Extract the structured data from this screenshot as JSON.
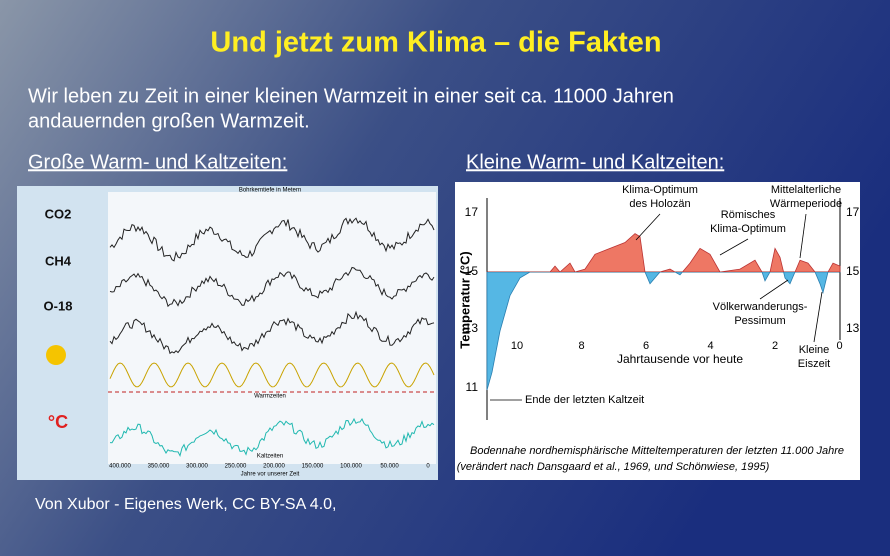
{
  "title": "Und jetzt zum Klima – die Fakten",
  "intro": [
    "Wir leben zu Zeit in einer kleinen Warmzeit in einer seit ca. 11000 Jahren",
    "andauernden großen Warmzeit."
  ],
  "left": {
    "heading": "Große Warm- und Kaltzeiten:",
    "labels": [
      "CO2",
      "CH4",
      "O-18",
      "°C"
    ],
    "top_axis_label": "Bohrkerntiefe in Metern",
    "bands": [
      "Warmzeiten",
      "Kaltzeiten"
    ],
    "bottom_axis_label": "Jahre vor unserer Zeit",
    "x_ticks": [
      "400.000",
      "350.000",
      "300.000",
      "250.000",
      "200.000",
      "150.000",
      "100.000",
      "50.000",
      "0"
    ]
  },
  "right": {
    "heading": "Kleine Warm- und Kaltzeiten:",
    "y_label": "Temperatur (°C)",
    "x_label": "Jahrtausende vor heute",
    "y_ticks": [
      "17",
      "15",
      "13",
      "11"
    ],
    "x_ticks": [
      "10",
      "8",
      "6",
      "4",
      "2",
      "0"
    ],
    "annotations": [
      [
        "Klima-Optimum",
        "des Holozän"
      ],
      [
        "Römisches",
        "Klima-Optimum"
      ],
      [
        "Mittelalterliche",
        "Wärmeperiode"
      ],
      [
        "Völkerwanderungs-",
        "Pessimum"
      ],
      [
        "Kleine",
        "Eiszeit"
      ],
      [
        "Ende der letzten Kaltzeit"
      ]
    ],
    "caption": [
      "Bodennahe nordhemisphärische Mitteltemperaturen der letzten 11.000 Jahre",
      "(verändert nach Dansgaard et al., 1969, und Schönwiese, 1995)"
    ]
  },
  "credit": "Von Xubor - Eigenes Werk, CC BY-SA 4.0,"
}
